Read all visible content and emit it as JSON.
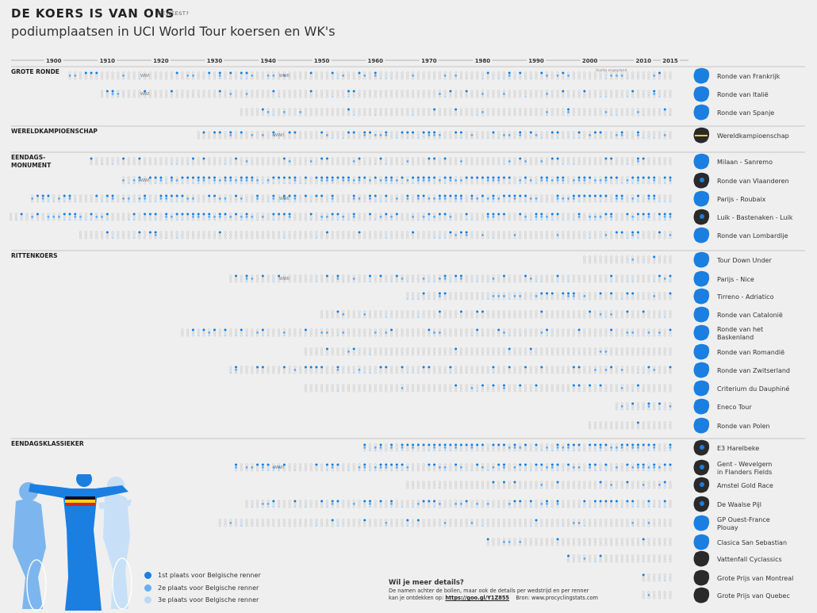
{
  "title": "DE KOERS IS VAN ONS",
  "title_suffix": "GEWEEST?",
  "subtitle": "podiumplaatsen in UCI World Tour koersen en WK's",
  "colors": {
    "first": "#1a7fe0",
    "second": "#6aaeee",
    "third": "#b9d9f6",
    "empty": "#b8b8b8",
    "country": "#1a7fe0",
    "dark": "#2a2a2a"
  },
  "legend": [
    {
      "label": "1st plaats voor Belgische renner",
      "color": "#1a7fe0"
    },
    {
      "label": "2e plaats voor Belgische renner",
      "color": "#6aaeee"
    },
    {
      "label": "3e plaats voor Belgische renner",
      "color": "#b9d9f6"
    }
  ],
  "footer": {
    "title": "Wil je meer details?",
    "line1": "De namen achter de bollen, maar ook de details per wedstrijd en per renner",
    "line2_prefix": "kan je ontdekken op:",
    "link": "https://goo.gl/Y1Z855",
    "source": "Bron: www.procyclingstats.com"
  },
  "chart_data": {
    "type": "table",
    "decades": [
      "1900",
      "1910",
      "1920",
      "1930",
      "1940",
      "1950",
      "1960",
      "1970",
      "1980",
      "1990",
      "2000",
      "2010",
      "2015"
    ],
    "ww1_label": "WWI",
    "ww2_label": "WWII",
    "cancel_label": "Vuelta ongepland",
    "sections": [
      {
        "name": "GROTE RONDE",
        "races": [
          {
            "name": "Ronde van Frankrijk",
            "start": 1903,
            "density": 0.18,
            "map": "france"
          },
          {
            "name": "Ronde van Italië",
            "start": 1909,
            "density": 0.12,
            "map": "italy"
          },
          {
            "name": "Ronde van Spanje",
            "start": 1935,
            "density": 0.1,
            "map": "spain"
          }
        ]
      },
      {
        "name": "WERELDKAMPIOENSCHAP",
        "races": [
          {
            "name": "Wereldkampioenschap",
            "start": 1927,
            "density": 0.3,
            "map": "jersey"
          }
        ]
      },
      {
        "name": "EENDAGS-\nMONUMENT",
        "races": [
          {
            "name": "Milaan - Sanremo",
            "start": 1907,
            "density": 0.15,
            "map": "italy"
          },
          {
            "name": "Ronde van Vlaanderen",
            "start": 1913,
            "density": 0.75,
            "map": "belgium"
          },
          {
            "name": "Parijs - Roubaix",
            "start": 1896,
            "density": 0.5,
            "map": "france"
          },
          {
            "name": "Luik - Bastenaken - Luik",
            "start": 1892,
            "density": 0.55,
            "map": "belgium"
          },
          {
            "name": "Ronde van Lombardije",
            "start": 1905,
            "density": 0.15,
            "map": "italy"
          }
        ]
      },
      {
        "name": "RITTENKOERS",
        "races": [
          {
            "name": "Tour Down Under",
            "start": 1999,
            "density": 0.05,
            "map": "australia"
          },
          {
            "name": "Parijs - Nice",
            "start": 1933,
            "density": 0.25,
            "map": "france"
          },
          {
            "name": "Tirreno - Adriatico",
            "start": 1966,
            "density": 0.3,
            "map": "italy"
          },
          {
            "name": "Ronde van Catalonië",
            "start": 1950,
            "density": 0.08,
            "map": "spain"
          },
          {
            "name": "Ronde van het\nBaskenland",
            "start": 1924,
            "density": 0.2,
            "map": "spain"
          },
          {
            "name": "Ronde van Romandië",
            "start": 1947,
            "density": 0.12,
            "map": "switzerland"
          },
          {
            "name": "Ronde van Zwitserland",
            "start": 1933,
            "density": 0.2,
            "map": "switzerland"
          },
          {
            "name": "Criterium du Dauphiné",
            "start": 1947,
            "density": 0.1,
            "map": "france"
          },
          {
            "name": "Eneco Tour",
            "start": 2005,
            "density": 0.35,
            "map": "benelux"
          },
          {
            "name": "Ronde van Polen",
            "start": 2000,
            "density": 0.05,
            "map": "poland"
          }
        ]
      },
      {
        "name": "EENDAGSKLASSIEKER",
        "races": [
          {
            "name": "E3 Harelbeke",
            "start": 1958,
            "density": 0.65,
            "map": "belgium"
          },
          {
            "name": "Gent - Wevelgem\nin Flanders Fields",
            "start": 1934,
            "density": 0.55,
            "map": "belgium"
          },
          {
            "name": "Amstel Gold Race",
            "start": 1966,
            "density": 0.15,
            "map": "netherlands"
          },
          {
            "name": "De Waalse Pijl",
            "start": 1936,
            "density": 0.4,
            "map": "belgium"
          },
          {
            "name": "GP Ouest-France\nPlouay",
            "start": 1931,
            "density": 0.12,
            "map": "france"
          },
          {
            "name": "Clasica San Sebastian",
            "start": 1981,
            "density": 0.1,
            "map": "spain"
          },
          {
            "name": "Vattenfall Cyclassics",
            "start": 1996,
            "density": 0.08,
            "map": "germany"
          },
          {
            "name": "Grote Prijs van Montreal",
            "start": 2010,
            "density": 0.05,
            "map": "canada"
          },
          {
            "name": "Grote Prijs van Quebec",
            "start": 2010,
            "density": 0.08,
            "map": "canada"
          }
        ]
      }
    ]
  }
}
